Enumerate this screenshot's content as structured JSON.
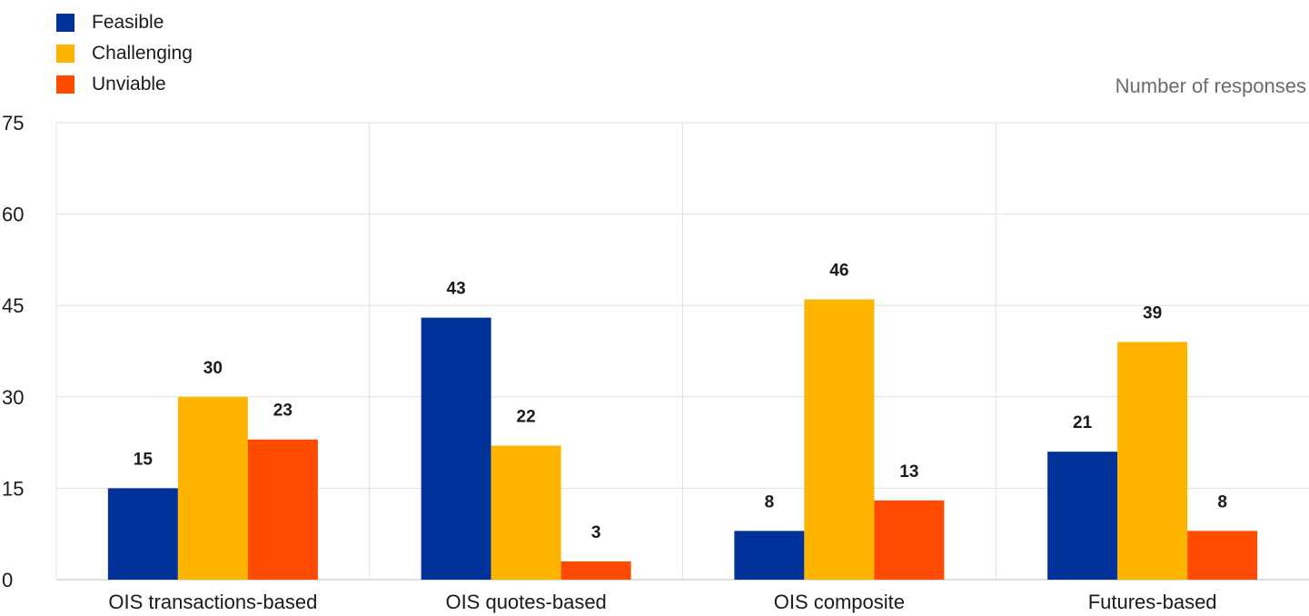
{
  "chart_data": {
    "type": "bar",
    "unit_label": "Number of responses",
    "categories": [
      "OIS transactions-based",
      "OIS quotes-based",
      "OIS composite",
      "Futures-based"
    ],
    "series": [
      {
        "name": "Feasible",
        "color": "#003299",
        "values": [
          15,
          43,
          8,
          21
        ]
      },
      {
        "name": "Challenging",
        "color": "#FFB400",
        "values": [
          30,
          22,
          46,
          39
        ]
      },
      {
        "name": "Unviable",
        "color": "#FF4B00",
        "values": [
          23,
          3,
          13,
          8
        ]
      }
    ],
    "ylim": [
      0,
      75
    ],
    "yticks": [
      0,
      15,
      30,
      45,
      60,
      75
    ],
    "grid": true,
    "legend_position": "top-left",
    "data_labels": true
  }
}
